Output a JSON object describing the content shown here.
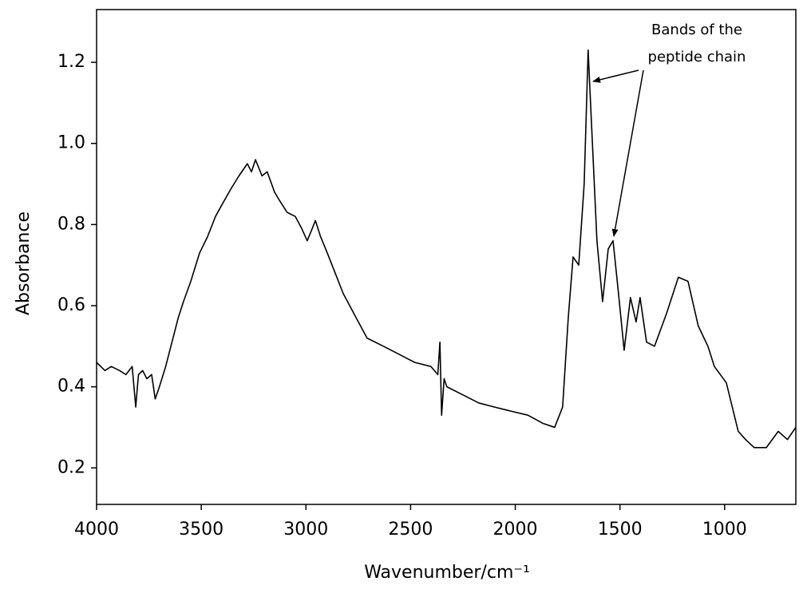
{
  "chart_data": {
    "type": "line",
    "x_label": "Wavenumber/cm⁻¹",
    "y_label": "Absorbance",
    "annotation": [
      "Bands of the",
      "peptide chain"
    ],
    "xlim": [
      4000,
      660
    ],
    "ylim": [
      0.11,
      1.33
    ],
    "xticks": [
      4000,
      3500,
      3000,
      2500,
      2000,
      1500,
      1000
    ],
    "yticks": [
      0.2,
      0.4,
      0.6,
      {
        "value": 1,
        "label": "1.0"
      },
      0.8,
      1.2
    ],
    "series": [
      {
        "color": "#000000",
        "x": [
          4000,
          3960,
          3930,
          3890,
          3860,
          3830,
          3813,
          3800,
          3780,
          3760,
          3737,
          3720,
          3700,
          3670,
          3640,
          3610,
          3585,
          3550,
          3508,
          3470,
          3432,
          3400,
          3356,
          3320,
          3280,
          3260,
          3241,
          3210,
          3185,
          3150,
          3127,
          3090,
          3051,
          3020,
          2994,
          2970,
          2955,
          2930,
          2898,
          2860,
          2822,
          2760,
          2708,
          2630,
          2555,
          2480,
          2403,
          2370,
          2360,
          2352,
          2340,
          2327,
          2250,
          2174,
          2100,
          2021,
          1940,
          1869,
          1812,
          1774,
          1747,
          1724,
          1697,
          1671,
          1652,
          1637,
          1610,
          1583,
          1556,
          1533,
          1507,
          1480,
          1450,
          1423,
          1404,
          1373,
          1335,
          1278,
          1221,
          1175,
          1126,
          1080,
          1049,
          992,
          935,
          900,
          859,
          801,
          744,
          700,
          660
        ],
        "values": [
          0.46,
          0.44,
          0.45,
          0.44,
          0.43,
          0.45,
          0.35,
          0.43,
          0.44,
          0.42,
          0.43,
          0.37,
          0.4,
          0.45,
          0.51,
          0.57,
          0.61,
          0.66,
          0.73,
          0.77,
          0.82,
          0.85,
          0.89,
          0.92,
          0.95,
          0.93,
          0.96,
          0.92,
          0.93,
          0.88,
          0.86,
          0.83,
          0.82,
          0.79,
          0.76,
          0.79,
          0.81,
          0.77,
          0.73,
          0.68,
          0.63,
          0.57,
          0.52,
          0.5,
          0.48,
          0.46,
          0.45,
          0.43,
          0.51,
          0.33,
          0.42,
          0.4,
          0.38,
          0.36,
          0.35,
          0.34,
          0.33,
          0.31,
          0.3,
          0.35,
          0.57,
          0.72,
          0.7,
          0.9,
          1.23,
          1.06,
          0.76,
          0.61,
          0.74,
          0.76,
          0.63,
          0.49,
          0.62,
          0.56,
          0.62,
          0.51,
          0.5,
          0.58,
          0.67,
          0.66,
          0.55,
          0.5,
          0.45,
          0.41,
          0.29,
          0.27,
          0.25,
          0.25,
          0.29,
          0.27,
          0.3
        ]
      }
    ]
  }
}
